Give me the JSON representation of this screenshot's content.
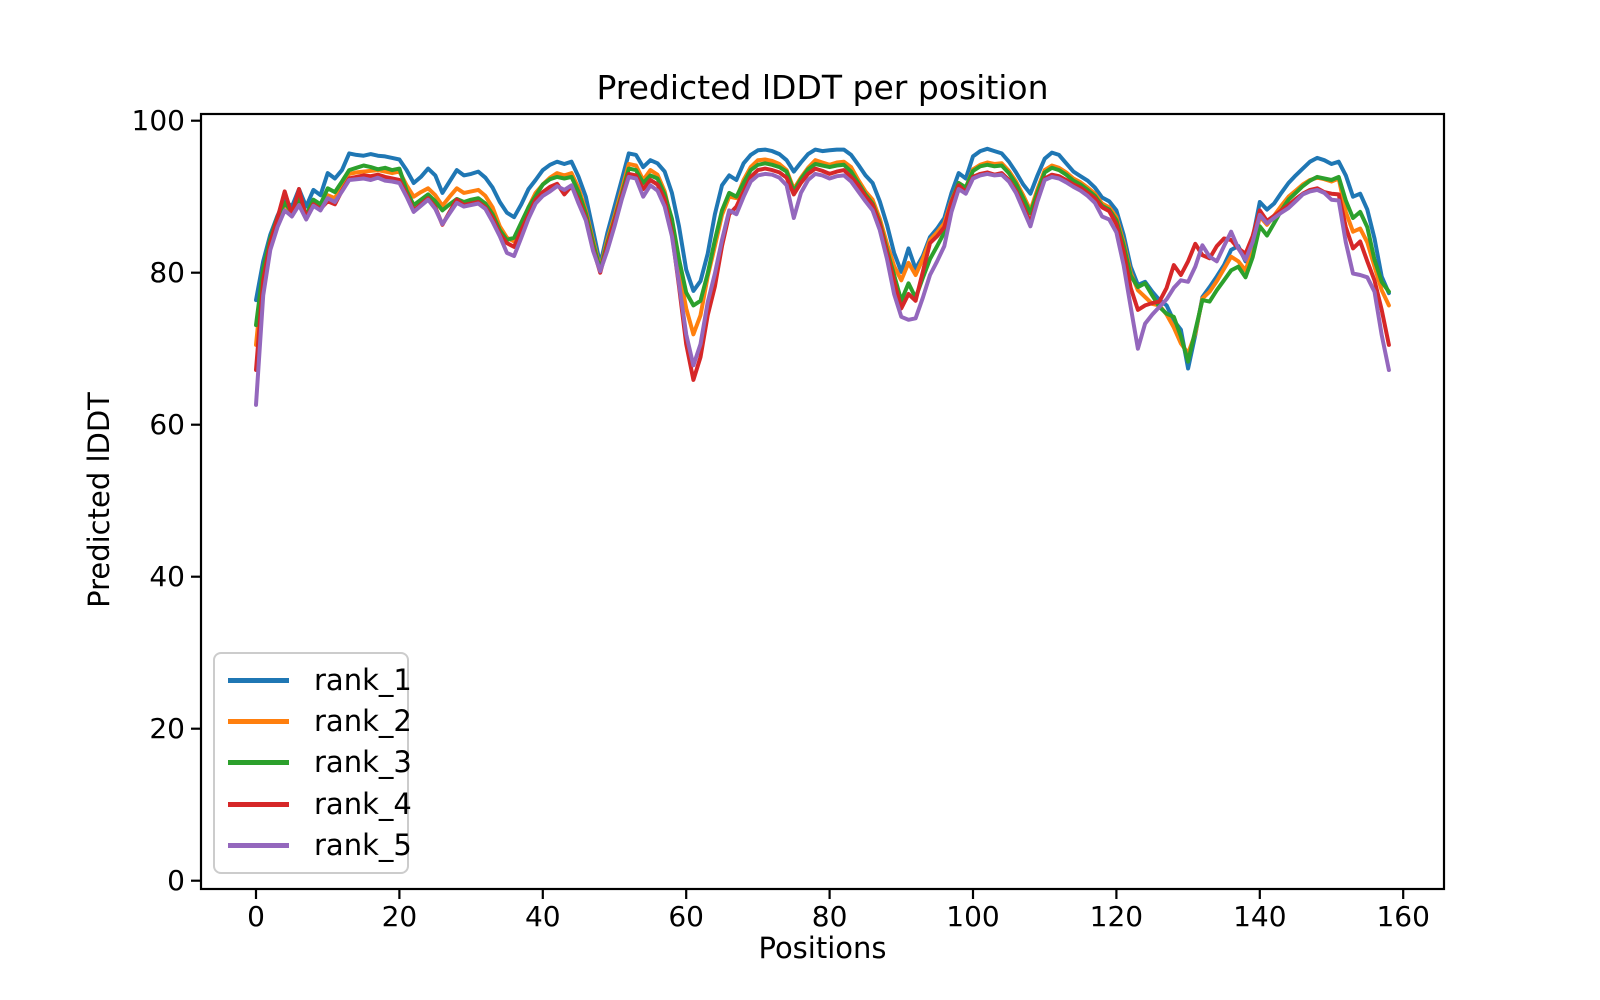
{
  "chart_data": {
    "type": "line",
    "title": "Predicted lDDT per position",
    "xlabel": "Positions",
    "ylabel": "Predicted lDDT",
    "xticks": [
      0,
      20,
      40,
      60,
      80,
      100,
      120,
      140,
      160
    ],
    "yticks": [
      0,
      20,
      40,
      60,
      80,
      100
    ],
    "ylim": [
      0,
      100
    ],
    "xlim": [
      0,
      160
    ],
    "grid": false,
    "legend_position": "lower left",
    "line_color_axes": "#000000",
    "background": "#ffffff",
    "x": [
      0,
      1,
      2,
      3,
      4,
      5,
      6,
      7,
      8,
      9,
      10,
      11,
      12,
      13,
      14,
      15,
      16,
      17,
      18,
      19,
      20,
      21,
      22,
      23,
      24,
      25,
      26,
      27,
      28,
      29,
      30,
      31,
      32,
      33,
      34,
      35,
      36,
      37,
      38,
      39,
      40,
      41,
      42,
      43,
      44,
      45,
      46,
      47,
      48,
      49,
      50,
      51,
      52,
      53,
      54,
      55,
      56,
      57,
      58,
      59,
      60,
      61,
      62,
      63,
      64,
      65,
      66,
      67,
      68,
      69,
      70,
      71,
      72,
      73,
      74,
      75,
      76,
      77,
      78,
      79,
      80,
      81,
      82,
      83,
      84,
      85,
      86,
      87,
      88,
      89,
      90,
      91,
      92,
      93,
      94,
      95,
      96,
      97,
      98,
      99,
      100,
      101,
      102,
      103,
      104,
      105,
      106,
      107,
      108,
      109,
      110,
      111,
      112,
      113,
      114,
      115,
      116,
      117,
      118,
      119,
      120,
      121,
      122,
      123,
      124,
      125,
      126,
      127,
      128,
      129,
      130,
      131,
      132,
      133,
      134,
      135,
      136,
      137,
      138,
      139,
      140,
      141,
      142,
      143,
      144,
      145,
      146,
      147,
      148,
      149,
      150,
      151,
      152,
      153,
      154,
      155,
      156,
      157,
      158
    ],
    "series": [
      {
        "name": "rank_1",
        "color": "#1f77b4",
        "values": [
          76.4,
          81.5,
          85.0,
          87.5,
          89.5,
          88.7,
          91.0,
          88.7,
          90.9,
          90.2,
          93.1,
          92.4,
          93.5,
          95.7,
          95.5,
          95.4,
          95.6,
          95.4,
          95.3,
          95.1,
          94.9,
          93.5,
          91.8,
          92.6,
          93.7,
          92.8,
          90.5,
          92.0,
          93.5,
          92.8,
          93.0,
          93.3,
          92.5,
          91.2,
          89.3,
          87.9,
          87.3,
          89.0,
          91.0,
          92.2,
          93.5,
          94.2,
          94.6,
          94.3,
          94.6,
          92.6,
          90.0,
          85.6,
          81.1,
          85.2,
          88.7,
          92.2,
          95.7,
          95.5,
          93.9,
          94.8,
          94.4,
          93.3,
          90.5,
          86.1,
          80.4,
          77.6,
          78.9,
          82.5,
          87.7,
          91.5,
          92.8,
          92.2,
          94.4,
          95.5,
          96.1,
          96.2,
          96.0,
          95.6,
          94.8,
          93.3,
          94.5,
          95.6,
          96.2,
          96.0,
          96.1,
          96.2,
          96.2,
          95.5,
          94.2,
          92.8,
          91.8,
          89.4,
          86.3,
          82.6,
          80.1,
          83.2,
          80.5,
          82.2,
          84.7,
          85.8,
          87.2,
          90.5,
          93.1,
          92.4,
          95.3,
          96.0,
          96.3,
          96.0,
          95.7,
          94.6,
          93.2,
          91.6,
          90.4,
          92.8,
          95.0,
          95.8,
          95.5,
          94.4,
          93.3,
          92.7,
          92.1,
          91.2,
          89.9,
          89.4,
          88.2,
          85.0,
          80.8,
          78.4,
          78.8,
          77.5,
          76.4,
          75.7,
          73.7,
          72.5,
          67.4,
          71.8,
          76.8,
          78.1,
          79.5,
          81.0,
          83.0,
          83.5,
          81.5,
          84.5,
          89.3,
          88.3,
          89.1,
          90.5,
          91.8,
          92.8,
          93.7,
          94.6,
          95.1,
          94.8,
          94.3,
          94.6,
          92.8,
          90.0,
          90.4,
          88.3,
          84.5,
          79.5,
          77.3
        ]
      },
      {
        "name": "rank_2",
        "color": "#ff7f0e",
        "values": [
          70.5,
          80.0,
          84.3,
          87.0,
          89.0,
          87.8,
          89.5,
          87.4,
          89.3,
          88.7,
          90.2,
          89.8,
          91.5,
          93.0,
          93.2,
          93.3,
          93.4,
          93.5,
          93.3,
          93.1,
          93.3,
          91.5,
          90.0,
          90.6,
          91.1,
          90.2,
          88.8,
          90.0,
          91.1,
          90.5,
          90.7,
          90.9,
          90.1,
          88.6,
          86.1,
          84.6,
          84.1,
          86.1,
          88.6,
          90.5,
          91.6,
          92.5,
          93.1,
          92.8,
          93.1,
          91.1,
          88.2,
          84.3,
          80.6,
          84.3,
          87.4,
          90.9,
          94.3,
          94.1,
          92.2,
          93.5,
          92.9,
          90.7,
          86.6,
          80.4,
          75.3,
          71.9,
          74.4,
          79.5,
          83.5,
          87.6,
          90.0,
          89.8,
          92.2,
          93.9,
          94.8,
          94.9,
          94.7,
          94.3,
          93.5,
          91.0,
          92.5,
          93.8,
          94.8,
          94.5,
          94.2,
          94.5,
          94.6,
          93.9,
          92.2,
          90.7,
          89.6,
          87.1,
          83.8,
          80.9,
          79.0,
          81.3,
          79.7,
          81.8,
          84.3,
          85.3,
          86.5,
          89.5,
          91.8,
          91.2,
          93.6,
          94.2,
          94.5,
          94.3,
          94.4,
          93.4,
          92.0,
          90.2,
          88.2,
          91.0,
          93.5,
          94.1,
          93.8,
          93.2,
          92.4,
          91.9,
          91.2,
          90.4,
          89.1,
          88.6,
          87.3,
          84.0,
          80.0,
          77.7,
          76.8,
          75.9,
          75.7,
          74.5,
          72.8,
          70.7,
          69.4,
          72.0,
          76.6,
          77.5,
          78.9,
          80.5,
          82.1,
          81.5,
          80.3,
          83.0,
          87.4,
          86.3,
          87.5,
          88.8,
          90.0,
          90.8,
          91.6,
          92.2,
          92.5,
          92.3,
          92.0,
          92.4,
          88.0,
          85.4,
          85.8,
          84.0,
          80.8,
          77.7,
          75.7
        ]
      },
      {
        "name": "rank_3",
        "color": "#2ca02c",
        "values": [
          73.1,
          80.5,
          84.5,
          87.3,
          89.2,
          88.0,
          89.8,
          87.6,
          89.6,
          89.0,
          91.1,
          90.6,
          92.0,
          93.5,
          93.8,
          94.1,
          93.9,
          93.6,
          93.8,
          93.5,
          93.7,
          90.8,
          88.9,
          89.6,
          90.3,
          89.4,
          88.2,
          89.0,
          89.7,
          89.3,
          89.6,
          89.8,
          89.1,
          87.7,
          85.6,
          84.3,
          84.6,
          86.6,
          88.6,
          90.1,
          91.6,
          92.3,
          92.6,
          92.4,
          92.6,
          90.6,
          87.8,
          83.9,
          80.4,
          83.9,
          87.0,
          90.3,
          93.7,
          93.5,
          91.8,
          92.8,
          92.4,
          90.3,
          87.1,
          81.8,
          77.4,
          75.7,
          76.3,
          79.9,
          84.3,
          88.2,
          90.5,
          90.0,
          91.8,
          93.5,
          94.2,
          94.4,
          94.2,
          93.9,
          93.3,
          90.7,
          92.3,
          93.6,
          94.3,
          94.1,
          93.9,
          94.1,
          94.2,
          93.3,
          91.8,
          90.3,
          89.1,
          86.6,
          83.0,
          79.7,
          76.3,
          78.6,
          76.7,
          79.3,
          81.8,
          83.5,
          85.3,
          89.3,
          91.8,
          91.2,
          93.4,
          94.0,
          94.2,
          94.0,
          94.1,
          93.1,
          91.7,
          89.8,
          87.8,
          90.6,
          93.2,
          93.8,
          93.5,
          92.9,
          92.1,
          91.6,
          90.9,
          90.1,
          88.8,
          88.3,
          86.9,
          83.6,
          79.6,
          78.1,
          78.6,
          77.0,
          75.5,
          74.6,
          74.2,
          71.6,
          68.3,
          72.4,
          76.4,
          76.2,
          77.7,
          79.0,
          80.3,
          80.8,
          79.4,
          82.0,
          86.1,
          84.9,
          86.5,
          88.2,
          89.6,
          90.5,
          91.4,
          92.1,
          92.6,
          92.4,
          92.2,
          92.6,
          89.5,
          87.2,
          88.0,
          86.0,
          81.7,
          78.8,
          77.5
        ]
      },
      {
        "name": "rank_4",
        "color": "#d62728",
        "values": [
          67.2,
          79.0,
          84.0,
          87.2,
          90.7,
          87.6,
          91.0,
          87.2,
          89.0,
          88.4,
          89.4,
          89.0,
          90.8,
          92.4,
          92.6,
          92.8,
          92.7,
          92.9,
          92.6,
          92.4,
          92.2,
          90.3,
          88.2,
          89.0,
          89.8,
          88.6,
          86.3,
          88.0,
          89.6,
          88.9,
          89.1,
          89.3,
          88.6,
          87.2,
          85.1,
          83.9,
          83.4,
          85.6,
          87.6,
          89.6,
          90.6,
          91.3,
          91.7,
          90.3,
          91.4,
          89.6,
          87.2,
          83.2,
          80.0,
          83.5,
          86.8,
          90.0,
          93.0,
          92.8,
          91.0,
          92.2,
          91.6,
          89.6,
          85.2,
          78.2,
          70.6,
          65.9,
          68.9,
          74.4,
          78.2,
          83.5,
          87.7,
          88.7,
          90.7,
          92.6,
          93.5,
          93.7,
          93.5,
          93.2,
          92.5,
          90.3,
          91.8,
          93.0,
          93.7,
          93.4,
          93.0,
          93.3,
          93.5,
          92.6,
          91.5,
          90.0,
          88.9,
          86.4,
          82.6,
          78.9,
          75.3,
          77.2,
          76.3,
          80.1,
          83.9,
          84.8,
          86.0,
          89.3,
          91.5,
          90.6,
          92.6,
          93.0,
          93.2,
          92.9,
          93.1,
          92.2,
          90.8,
          88.8,
          86.6,
          89.8,
          92.4,
          92.9,
          92.7,
          92.2,
          91.6,
          91.2,
          90.5,
          89.8,
          88.6,
          88.1,
          86.4,
          82.8,
          78.0,
          75.1,
          75.7,
          76.0,
          76.2,
          78.0,
          81.0,
          79.7,
          81.5,
          83.8,
          82.3,
          81.9,
          83.5,
          84.5,
          84.3,
          83.2,
          82.5,
          84.8,
          88.2,
          86.8,
          87.5,
          88.2,
          88.9,
          89.7,
          90.4,
          90.9,
          91.1,
          90.6,
          90.4,
          90.3,
          86.0,
          83.2,
          84.1,
          81.5,
          79.0,
          75.1,
          70.5
        ]
      },
      {
        "name": "rank_5",
        "color": "#9467bd",
        "values": [
          62.6,
          77.0,
          83.0,
          86.0,
          88.2,
          87.4,
          88.9,
          87.0,
          88.8,
          88.2,
          89.8,
          89.3,
          90.7,
          92.2,
          92.3,
          92.4,
          92.2,
          92.5,
          92.1,
          92.0,
          91.8,
          90.0,
          88.0,
          88.8,
          89.6,
          88.4,
          86.4,
          87.8,
          89.2,
          88.7,
          88.9,
          89.1,
          88.4,
          86.7,
          84.8,
          82.6,
          82.2,
          84.6,
          87.1,
          89.1,
          90.1,
          90.7,
          91.4,
          90.9,
          91.5,
          89.1,
          86.9,
          82.9,
          80.2,
          82.9,
          86.1,
          89.6,
          92.6,
          92.4,
          90.0,
          91.5,
          90.8,
          88.7,
          84.8,
          78.6,
          71.9,
          67.8,
          70.6,
          76.1,
          79.9,
          84.3,
          88.2,
          87.7,
          90.0,
          92.0,
          92.8,
          93.0,
          92.9,
          92.5,
          91.5,
          87.2,
          90.5,
          92.2,
          93.0,
          92.8,
          92.4,
          92.7,
          92.8,
          92.0,
          90.7,
          89.4,
          88.2,
          85.6,
          81.8,
          77.2,
          74.2,
          73.8,
          74.0,
          76.7,
          79.7,
          81.5,
          83.5,
          88.0,
          91.0,
          90.4,
          92.4,
          92.8,
          93.0,
          92.8,
          92.9,
          92.0,
          90.5,
          88.3,
          86.1,
          89.4,
          92.2,
          92.6,
          92.4,
          91.9,
          91.3,
          90.8,
          90.1,
          89.2,
          87.4,
          87.0,
          85.3,
          81.0,
          75.5,
          70.0,
          73.3,
          74.5,
          75.5,
          76.5,
          78.0,
          79.0,
          78.8,
          80.8,
          83.6,
          82.1,
          81.5,
          83.5,
          85.4,
          83.2,
          81.7,
          84.0,
          87.6,
          86.5,
          87.2,
          87.9,
          88.5,
          89.4,
          90.3,
          90.7,
          90.9,
          90.5,
          89.6,
          89.5,
          84.0,
          79.9,
          79.7,
          79.4,
          77.5,
          71.8,
          67.2
        ]
      }
    ]
  }
}
